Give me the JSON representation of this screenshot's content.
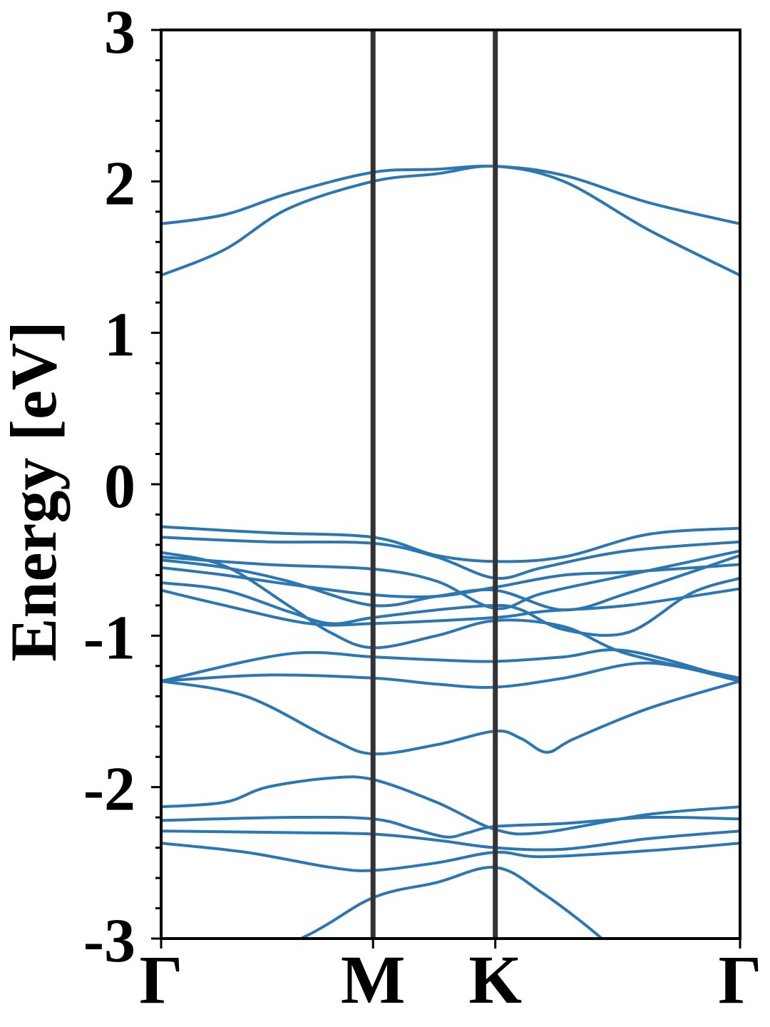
{
  "chart_data": {
    "type": "line",
    "ylabel": "Energy [eV]",
    "ylim": [
      -3,
      3
    ],
    "yticks": [
      3,
      2,
      1,
      0,
      -1,
      -2,
      -3
    ],
    "ytick_labels": [
      "3",
      "2",
      "1",
      "0",
      "-1",
      "-2",
      "-3"
    ],
    "grid": false,
    "kpath": {
      "labels": [
        "Γ",
        "M",
        "K",
        "Γ"
      ],
      "positions": [
        0,
        1,
        1.577,
        2.732
      ]
    },
    "series_color": "#2b77b2",
    "divider_color": "#333333",
    "bands": [
      [
        [
          0,
          -3.4
        ],
        [
          0.66,
          -3.0
        ],
        [
          1,
          -2.73
        ],
        [
          1.3,
          -2.63
        ],
        [
          1.577,
          -2.53
        ],
        [
          1.8,
          -2.7
        ],
        [
          2.08,
          -3.0
        ],
        [
          2.3,
          -3.3
        ]
      ],
      [
        [
          0,
          -2.37
        ],
        [
          0.4,
          -2.43
        ],
        [
          0.8,
          -2.53
        ],
        [
          1,
          -2.55
        ],
        [
          1.3,
          -2.5
        ],
        [
          1.577,
          -2.43
        ],
        [
          1.8,
          -2.46
        ],
        [
          2.3,
          -2.42
        ],
        [
          2.732,
          -2.37
        ]
      ],
      [
        [
          0,
          -2.29
        ],
        [
          0.6,
          -2.3
        ],
        [
          1,
          -2.31
        ],
        [
          1.3,
          -2.35
        ],
        [
          1.577,
          -2.4
        ],
        [
          1.9,
          -2.41
        ],
        [
          2.3,
          -2.34
        ],
        [
          2.732,
          -2.29
        ]
      ],
      [
        [
          0,
          -2.22
        ],
        [
          0.6,
          -2.2
        ],
        [
          1,
          -2.21
        ],
        [
          1.2,
          -2.28
        ],
        [
          1.35,
          -2.33
        ],
        [
          1.45,
          -2.3
        ],
        [
          1.577,
          -2.26
        ],
        [
          1.9,
          -2.24
        ],
        [
          2.3,
          -2.2
        ],
        [
          2.732,
          -2.21
        ]
      ],
      [
        [
          0,
          -2.13
        ],
        [
          0.3,
          -2.1
        ],
        [
          0.5,
          -2.0
        ],
        [
          0.8,
          -1.94
        ],
        [
          1,
          -1.95
        ],
        [
          1.3,
          -2.1
        ],
        [
          1.577,
          -2.28
        ],
        [
          1.8,
          -2.3
        ],
        [
          2.3,
          -2.18
        ],
        [
          2.732,
          -2.13
        ]
      ],
      [
        [
          0,
          -1.3
        ],
        [
          0.4,
          -1.4
        ],
        [
          0.8,
          -1.68
        ],
        [
          1,
          -1.78
        ],
        [
          1.3,
          -1.72
        ],
        [
          1.577,
          -1.63
        ],
        [
          1.7,
          -1.68
        ],
        [
          1.82,
          -1.77
        ],
        [
          1.95,
          -1.68
        ],
        [
          2.3,
          -1.48
        ],
        [
          2.732,
          -1.3
        ]
      ],
      [
        [
          0,
          -1.3
        ],
        [
          0.5,
          -1.26
        ],
        [
          1,
          -1.28
        ],
        [
          1.3,
          -1.32
        ],
        [
          1.577,
          -1.34
        ],
        [
          1.9,
          -1.28
        ],
        [
          2.3,
          -1.18
        ],
        [
          2.732,
          -1.3
        ]
      ],
      [
        [
          0,
          -1.3
        ],
        [
          0.6,
          -1.12
        ],
        [
          1,
          -1.14
        ],
        [
          1.3,
          -1.16
        ],
        [
          1.577,
          -1.17
        ],
        [
          1.9,
          -1.14
        ],
        [
          2.2,
          -1.1
        ],
        [
          2.732,
          -1.3
        ]
      ],
      [
        [
          0,
          -0.45
        ],
        [
          0.3,
          -0.54
        ],
        [
          0.6,
          -0.8
        ],
        [
          0.8,
          -0.98
        ],
        [
          1,
          -1.08
        ],
        [
          1.3,
          -1.0
        ],
        [
          1.577,
          -0.9
        ],
        [
          1.9,
          -0.94
        ],
        [
          2.2,
          -1.12
        ],
        [
          2.732,
          -1.28
        ]
      ],
      [
        [
          0,
          -0.7
        ],
        [
          0.3,
          -0.8
        ],
        [
          0.7,
          -0.92
        ],
        [
          1,
          -0.92
        ],
        [
          1.577,
          -0.88
        ],
        [
          1.8,
          -0.84
        ],
        [
          2.2,
          -0.8
        ],
        [
          2.732,
          -0.69
        ]
      ],
      [
        [
          0,
          -0.65
        ],
        [
          0.3,
          -0.7
        ],
        [
          0.6,
          -0.84
        ],
        [
          0.8,
          -0.92
        ],
        [
          1,
          -0.88
        ],
        [
          1.3,
          -0.83
        ],
        [
          1.577,
          -0.8
        ],
        [
          1.7,
          -0.83
        ],
        [
          1.9,
          -0.96
        ],
        [
          2.2,
          -0.98
        ],
        [
          2.5,
          -0.72
        ],
        [
          2.732,
          -0.62
        ]
      ],
      [
        [
          0,
          -0.5
        ],
        [
          0.3,
          -0.55
        ],
        [
          0.6,
          -0.64
        ],
        [
          1,
          -0.8
        ],
        [
          1.3,
          -0.74
        ],
        [
          1.577,
          -0.7
        ],
        [
          1.9,
          -0.83
        ],
        [
          2.2,
          -0.72
        ],
        [
          2.732,
          -0.47
        ]
      ],
      [
        [
          0,
          -0.55
        ],
        [
          0.3,
          -0.6
        ],
        [
          0.6,
          -0.66
        ],
        [
          1,
          -0.73
        ],
        [
          1.3,
          -0.74
        ],
        [
          1.577,
          -0.68
        ],
        [
          1.9,
          -0.6
        ],
        [
          2.2,
          -0.58
        ],
        [
          2.732,
          -0.53
        ]
      ],
      [
        [
          0,
          -0.48
        ],
        [
          0.5,
          -0.53
        ],
        [
          1,
          -0.56
        ],
        [
          1.3,
          -0.64
        ],
        [
          1.577,
          -0.82
        ],
        [
          1.8,
          -0.72
        ],
        [
          2.2,
          -0.6
        ],
        [
          2.732,
          -0.44
        ]
      ],
      [
        [
          0,
          -0.35
        ],
        [
          0.5,
          -0.38
        ],
        [
          1,
          -0.39
        ],
        [
          1.3,
          -0.48
        ],
        [
          1.577,
          -0.62
        ],
        [
          1.8,
          -0.55
        ],
        [
          2.2,
          -0.44
        ],
        [
          2.732,
          -0.38
        ]
      ],
      [
        [
          0,
          -0.28
        ],
        [
          0.5,
          -0.32
        ],
        [
          1,
          -0.35
        ],
        [
          1.3,
          -0.47
        ],
        [
          1.577,
          -0.51
        ],
        [
          1.9,
          -0.48
        ],
        [
          2.3,
          -0.33
        ],
        [
          2.732,
          -0.29
        ]
      ],
      [
        [
          0,
          1.38
        ],
        [
          0.3,
          1.55
        ],
        [
          0.6,
          1.82
        ],
        [
          1,
          2.0
        ],
        [
          1.3,
          2.05
        ],
        [
          1.577,
          2.1
        ],
        [
          1.9,
          2.0
        ],
        [
          2.3,
          1.68
        ],
        [
          2.732,
          1.38
        ]
      ],
      [
        [
          0,
          1.72
        ],
        [
          0.3,
          1.78
        ],
        [
          0.6,
          1.92
        ],
        [
          1,
          2.06
        ],
        [
          1.3,
          2.08
        ],
        [
          1.577,
          2.1
        ],
        [
          1.9,
          2.04
        ],
        [
          2.3,
          1.86
        ],
        [
          2.732,
          1.72
        ]
      ]
    ]
  }
}
